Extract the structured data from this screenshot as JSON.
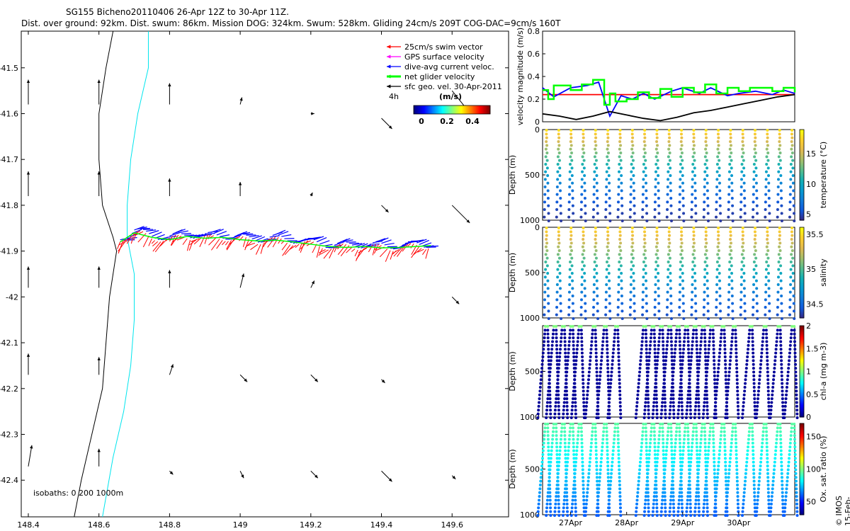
{
  "title_line1": "SG155 Bicheno20110406 26-Apr 12Z to 30-Apr 11Z.",
  "title_line2": "Dist. over ground: 92km. Dist. swum: 86km. Mission DOG: 324km. Swum: 528km. Gliding 24cm/s 209T COG-DAC=9cm/s 160T",
  "credit": "© IMOS 15-Feb-2019 02:13:15 Hobart time. QC flags 1  2",
  "colors": {
    "swim": "#ff0000",
    "gps": "#ff00ff",
    "dac": "#0000ff",
    "net": "#00ff00",
    "sfc": "#000000",
    "isobath_deep": "#000000",
    "isobath_shallow": "#00e5ee"
  },
  "chart_data": [
    {
      "type": "scatter",
      "id": "map",
      "xlim": [
        148.38,
        149.76
      ],
      "ylim": [
        -42.48,
        -41.42
      ],
      "x_ticks": [
        "148.4",
        "148.6",
        "148.8",
        "149",
        "149.2",
        "149.4",
        "149.6"
      ],
      "x_tick_values": [
        148.4,
        148.6,
        148.8,
        149.0,
        149.2,
        149.4,
        149.6
      ],
      "y_ticks": [
        "-41.5",
        "-41.6",
        "-41.7",
        "-41.8",
        "-41.9",
        "-42",
        "-42.1",
        "-42.2",
        "-42.3",
        "-42.4"
      ],
      "y_tick_values": [
        -41.5,
        -41.6,
        -41.7,
        -41.8,
        -41.9,
        -42.0,
        -42.1,
        -42.2,
        -42.3,
        -42.4
      ],
      "legend": {
        "placement": "top-right",
        "entries": [
          "25cm/s swim vector",
          "GPS surface velocity",
          "dive-avg current veloc.",
          "net glider velocity",
          "sfc geo. vel. 30-Apr-2011"
        ],
        "extra_label": "4h",
        "colorbar_label": "(m/s)",
        "colorbar_ticks": [
          "0",
          "0.2",
          "0.4"
        ]
      },
      "isobath_label": "isobaths: 0   200  1000m",
      "isobath_1000m": [
        [
          148.64,
          -41.42
        ],
        [
          148.62,
          -41.5
        ],
        [
          148.6,
          -41.6
        ],
        [
          148.6,
          -41.7
        ],
        [
          148.61,
          -41.8
        ],
        [
          148.64,
          -41.87
        ],
        [
          148.65,
          -41.9
        ],
        [
          148.63,
          -42.0
        ],
        [
          148.62,
          -42.1
        ],
        [
          148.61,
          -42.2
        ],
        [
          148.58,
          -42.3
        ],
        [
          148.55,
          -42.4
        ],
        [
          148.53,
          -42.48
        ]
      ],
      "isobath_200m": [
        [
          148.74,
          -41.42
        ],
        [
          148.74,
          -41.5
        ],
        [
          148.71,
          -41.6
        ],
        [
          148.69,
          -41.7
        ],
        [
          148.68,
          -41.8
        ],
        [
          148.68,
          -41.87
        ],
        [
          148.7,
          -41.95
        ],
        [
          148.7,
          -42.05
        ],
        [
          148.69,
          -42.15
        ],
        [
          148.67,
          -42.25
        ],
        [
          148.64,
          -42.35
        ],
        [
          148.61,
          -42.48
        ]
      ],
      "glider_track": [
        [
          148.66,
          -41.88
        ],
        [
          148.7,
          -41.86
        ],
        [
          148.75,
          -41.87
        ],
        [
          148.8,
          -41.875
        ],
        [
          148.85,
          -41.868
        ],
        [
          148.9,
          -41.872
        ],
        [
          148.95,
          -41.87
        ],
        [
          149.0,
          -41.875
        ],
        [
          149.05,
          -41.878
        ],
        [
          149.1,
          -41.876
        ],
        [
          149.15,
          -41.88
        ],
        [
          149.2,
          -41.885
        ],
        [
          149.25,
          -41.89
        ],
        [
          149.3,
          -41.892
        ],
        [
          149.35,
          -41.89
        ],
        [
          149.4,
          -41.893
        ],
        [
          149.45,
          -41.892
        ],
        [
          149.5,
          -41.89
        ],
        [
          149.54,
          -41.888
        ]
      ],
      "sfc_vectors": [
        {
          "x": 148.4,
          "y": -41.58,
          "u": 0.0,
          "v": 0.07
        },
        {
          "x": 148.6,
          "y": -41.58,
          "u": 0.0,
          "v": 0.07
        },
        {
          "x": 148.8,
          "y": -41.58,
          "u": 0.0,
          "v": 0.06
        },
        {
          "x": 149.0,
          "y": -41.58,
          "u": 0.005,
          "v": 0.02
        },
        {
          "x": 149.2,
          "y": -41.6,
          "u": 0.01,
          "v": 0.0
        },
        {
          "x": 149.4,
          "y": -41.61,
          "u": 0.03,
          "v": -0.03
        },
        {
          "x": 149.6,
          "y": -41.55,
          "u": 0.04,
          "v": -0.05
        },
        {
          "x": 148.4,
          "y": -41.78,
          "u": 0.0,
          "v": 0.07
        },
        {
          "x": 148.6,
          "y": -41.78,
          "u": 0.0,
          "v": 0.07
        },
        {
          "x": 148.8,
          "y": -41.78,
          "u": 0.0,
          "v": 0.05
        },
        {
          "x": 149.0,
          "y": -41.78,
          "u": 0.0,
          "v": 0.04
        },
        {
          "x": 149.2,
          "y": -41.78,
          "u": 0.005,
          "v": 0.01
        },
        {
          "x": 149.4,
          "y": -41.8,
          "u": 0.02,
          "v": -0.02
        },
        {
          "x": 149.6,
          "y": -41.8,
          "u": 0.05,
          "v": -0.05
        },
        {
          "x": 148.4,
          "y": -41.98,
          "u": 0.0,
          "v": 0.06
        },
        {
          "x": 148.6,
          "y": -41.98,
          "u": 0.0,
          "v": 0.06
        },
        {
          "x": 148.8,
          "y": -41.98,
          "u": 0.0,
          "v": 0.05
        },
        {
          "x": 149.0,
          "y": -41.98,
          "u": 0.01,
          "v": 0.04
        },
        {
          "x": 149.2,
          "y": -41.98,
          "u": 0.01,
          "v": 0.02
        },
        {
          "x": 149.4,
          "y": -42.0,
          "u": 0.0,
          "v": 0.0
        },
        {
          "x": 149.6,
          "y": -42.0,
          "u": 0.02,
          "v": -0.02
        },
        {
          "x": 148.4,
          "y": -42.17,
          "u": 0.0,
          "v": 0.06
        },
        {
          "x": 148.6,
          "y": -42.17,
          "u": 0.0,
          "v": 0.05
        },
        {
          "x": 148.8,
          "y": -42.17,
          "u": 0.01,
          "v": 0.03
        },
        {
          "x": 149.0,
          "y": -42.17,
          "u": 0.02,
          "v": -0.02
        },
        {
          "x": 149.2,
          "y": -42.17,
          "u": 0.02,
          "v": -0.02
        },
        {
          "x": 149.4,
          "y": -42.18,
          "u": 0.01,
          "v": -0.01
        },
        {
          "x": 149.6,
          "y": -42.2,
          "u": 0.0,
          "v": 0.0
        },
        {
          "x": 148.4,
          "y": -42.37,
          "u": 0.01,
          "v": 0.06
        },
        {
          "x": 148.6,
          "y": -42.37,
          "u": 0.0,
          "v": 0.05
        },
        {
          "x": 148.8,
          "y": -42.38,
          "u": 0.01,
          "v": -0.01
        },
        {
          "x": 149.0,
          "y": -42.38,
          "u": 0.01,
          "v": -0.02
        },
        {
          "x": 149.2,
          "y": -42.38,
          "u": 0.02,
          "v": -0.02
        },
        {
          "x": 149.4,
          "y": -42.38,
          "u": 0.03,
          "v": -0.03
        },
        {
          "x": 149.6,
          "y": -42.39,
          "u": 0.01,
          "v": -0.01
        }
      ]
    },
    {
      "type": "line",
      "id": "velocity",
      "ylabel": "velocity magnitude (m/s)",
      "ylim": [
        0,
        0.8
      ],
      "y_ticks": [
        "0",
        "0.2",
        "0.4",
        "0.6",
        "0.8"
      ],
      "y_tick_values": [
        0,
        0.2,
        0.4,
        0.6,
        0.8
      ],
      "xlim": [
        26.5,
        31.0
      ],
      "series": [
        {
          "color": "#ff0000",
          "x": [
            26.5,
            31.0
          ],
          "values": [
            0.24,
            0.24
          ]
        },
        {
          "color": "#0000ff",
          "x": [
            26.5,
            26.7,
            27.0,
            27.3,
            27.5,
            27.7,
            27.9,
            28.1,
            28.3,
            28.5,
            28.8,
            29.0,
            29.3,
            29.5,
            29.8,
            30.0,
            30.3,
            30.6,
            30.8,
            31.0
          ],
          "values": [
            0.3,
            0.22,
            0.3,
            0.32,
            0.35,
            0.05,
            0.23,
            0.2,
            0.25,
            0.2,
            0.27,
            0.3,
            0.25,
            0.3,
            0.23,
            0.25,
            0.27,
            0.24,
            0.28,
            0.25
          ]
        },
        {
          "color": "#00ff00",
          "x": [
            26.5,
            26.6,
            26.7,
            26.8,
            27.0,
            27.2,
            27.4,
            27.6,
            27.7,
            27.8,
            28.0,
            28.2,
            28.4,
            28.6,
            28.8,
            29.0,
            29.2,
            29.4,
            29.6,
            29.8,
            30.0,
            30.2,
            30.4,
            30.6,
            30.8,
            31.0
          ],
          "values": [
            0.28,
            0.2,
            0.32,
            0.32,
            0.28,
            0.33,
            0.37,
            0.15,
            0.25,
            0.18,
            0.2,
            0.26,
            0.21,
            0.29,
            0.22,
            0.3,
            0.26,
            0.33,
            0.25,
            0.3,
            0.27,
            0.3,
            0.3,
            0.27,
            0.3,
            0.26
          ]
        },
        {
          "color": "#000000",
          "x": [
            26.5,
            26.8,
            27.1,
            27.4,
            27.7,
            28.0,
            28.3,
            28.6,
            28.9,
            29.2,
            29.5,
            29.8,
            30.1,
            30.4,
            30.7,
            31.0
          ],
          "values": [
            0.07,
            0.05,
            0.02,
            0.05,
            0.09,
            0.06,
            0.03,
            0.01,
            0.04,
            0.08,
            0.1,
            0.13,
            0.16,
            0.19,
            0.22,
            0.24
          ]
        }
      ]
    },
    {
      "type": "scatter",
      "id": "temperature",
      "ylabel": "Depth (m)",
      "ylim": [
        1000,
        0
      ],
      "y_ticks": [
        "0",
        "500",
        "1000"
      ],
      "y_tick_values": [
        0,
        500,
        1000
      ],
      "xlim": [
        26.5,
        31.0
      ],
      "colorbar_label": "temperature (°C)",
      "colorbar_ticks": [
        "5",
        "10",
        "15"
      ],
      "colorbar_tick_values": [
        5,
        10,
        15
      ],
      "clim": [
        4,
        19
      ],
      "dives": 21,
      "surface_value": 18,
      "bottom_value": 4.5
    },
    {
      "type": "scatter",
      "id": "salinity",
      "ylabel": "Depth (m)",
      "ylim": [
        1000,
        0
      ],
      "y_ticks": [
        "0",
        "500",
        "1000"
      ],
      "y_tick_values": [
        0,
        500,
        1000
      ],
      "xlim": [
        26.5,
        31.0
      ],
      "colorbar_label": "salinity",
      "colorbar_ticks": [
        "34.5",
        "35",
        "35.5"
      ],
      "colorbar_tick_values": [
        34.5,
        35,
        35.5
      ],
      "clim": [
        34.3,
        35.6
      ],
      "dives": 21,
      "surface_value": 35.5,
      "bottom_value": 34.4
    },
    {
      "type": "scatter",
      "id": "chla",
      "ylabel": "Depth (m)",
      "ylim": [
        1000,
        0
      ],
      "y_ticks": [
        "500",
        "1000"
      ],
      "y_tick_values": [
        500,
        1000
      ],
      "xlim": [
        26.5,
        31.0
      ],
      "colorbar_label": "chl-a (mg m-3)",
      "colorbar_ticks": [
        "0",
        "0.5",
        "1",
        "1.5",
        "2"
      ],
      "colorbar_tick_values": [
        0,
        0.5,
        1,
        1.5,
        2
      ],
      "clim": [
        0,
        2
      ],
      "dive_times": [
        26.55,
        26.7,
        26.85,
        27.0,
        27.15,
        27.4,
        27.6,
        27.8,
        28.3,
        28.45,
        28.6,
        28.75,
        28.9,
        29.05,
        29.2,
        29.35,
        29.5,
        29.7,
        29.9,
        30.2,
        30.45,
        30.7,
        30.95
      ],
      "surface_value": 1.0,
      "bottom_value": 0.05
    },
    {
      "type": "scatter",
      "id": "oxygen",
      "ylabel": "Depth (m)",
      "ylim": [
        1000,
        0
      ],
      "y_ticks": [
        "500",
        "1000"
      ],
      "y_tick_values": [
        500,
        1000
      ],
      "xlim": [
        26.5,
        31.0
      ],
      "colorbar_label": "Ox. sat. ratio (%)",
      "colorbar_ticks": [
        "50",
        "100",
        "150"
      ],
      "colorbar_tick_values": [
        50,
        100,
        150
      ],
      "clim": [
        30,
        170
      ],
      "dive_times": [
        26.55,
        26.7,
        26.85,
        27.0,
        27.15,
        27.4,
        27.6,
        27.8,
        28.3,
        28.45,
        28.6,
        28.75,
        28.9,
        29.05,
        29.2,
        29.35,
        29.5,
        29.7,
        29.9,
        30.2,
        30.45,
        30.7,
        30.95
      ],
      "surface_value": 95,
      "bottom_value": 60,
      "x_ticks": [
        "27Apr",
        "28Apr",
        "29Apr",
        "30Apr"
      ],
      "x_tick_values": [
        27,
        28,
        29,
        30
      ]
    }
  ]
}
